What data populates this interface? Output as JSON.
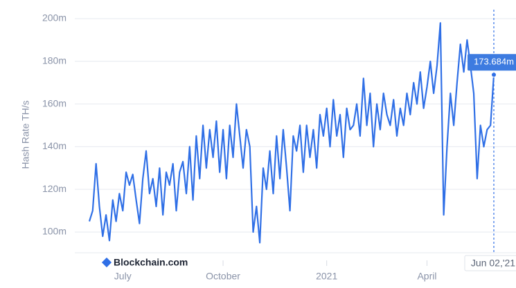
{
  "chart_data": {
    "type": "line",
    "y_label": "Hash Rate TH/s",
    "watermark": "Blockchain.com",
    "tooltip": "173.684m",
    "color": "#2f6fe6",
    "grid": true,
    "ylim": [
      90.6,
      205.5
    ],
    "yticks": [
      {
        "value": 100,
        "label": "100m"
      },
      {
        "value": 120,
        "label": "120m"
      },
      {
        "value": 140,
        "label": "140m"
      },
      {
        "value": 160,
        "label": "160m"
      },
      {
        "value": 180,
        "label": "180m"
      },
      {
        "value": 200,
        "label": "200m"
      }
    ],
    "categories": [
      null,
      null,
      null,
      null,
      null,
      null,
      null,
      null,
      null,
      null,
      "July",
      null,
      null,
      null,
      null,
      null,
      null,
      null,
      null,
      null,
      null,
      null,
      null,
      null,
      null,
      null,
      null,
      null,
      null,
      null,
      null,
      null,
      null,
      null,
      null,
      null,
      null,
      null,
      null,
      null,
      "October",
      null,
      null,
      null,
      null,
      null,
      null,
      null,
      null,
      null,
      null,
      null,
      null,
      null,
      null,
      null,
      null,
      null,
      null,
      null,
      null,
      null,
      null,
      null,
      null,
      null,
      null,
      null,
      null,
      null,
      null,
      "2021",
      null,
      null,
      null,
      null,
      null,
      null,
      null,
      null,
      null,
      null,
      null,
      null,
      null,
      null,
      null,
      null,
      null,
      null,
      null,
      null,
      null,
      null,
      null,
      null,
      null,
      null,
      null,
      null,
      null,
      "April",
      null,
      null,
      null,
      null,
      null,
      null,
      null,
      null,
      null,
      null,
      null,
      null,
      null,
      null,
      null,
      null,
      null,
      null,
      null,
      "Jun 02,'21"
    ],
    "values": [
      105,
      110,
      132,
      112,
      98,
      108,
      96,
      115,
      105,
      118,
      110,
      128,
      122,
      127,
      115,
      104,
      125,
      138,
      118,
      125,
      112,
      130,
      108,
      128,
      122,
      132,
      110,
      128,
      133,
      118,
      140,
      115,
      145,
      125,
      150,
      130,
      148,
      135,
      152,
      128,
      148,
      125,
      150,
      135,
      160,
      145,
      130,
      148,
      140,
      100,
      112,
      95,
      130,
      120,
      138,
      118,
      145,
      125,
      148,
      130,
      110,
      145,
      138,
      150,
      128,
      150,
      135,
      148,
      130,
      155,
      145,
      158,
      140,
      162,
      145,
      155,
      135,
      158,
      148,
      150,
      160,
      145,
      172,
      150,
      165,
      140,
      160,
      148,
      165,
      155,
      150,
      162,
      145,
      158,
      150,
      165,
      155,
      170,
      160,
      175,
      158,
      168,
      180,
      165,
      178,
      198,
      108,
      140,
      165,
      150,
      170,
      188,
      175,
      190,
      178,
      165,
      125,
      150,
      140,
      148,
      150,
      173.684
    ]
  }
}
